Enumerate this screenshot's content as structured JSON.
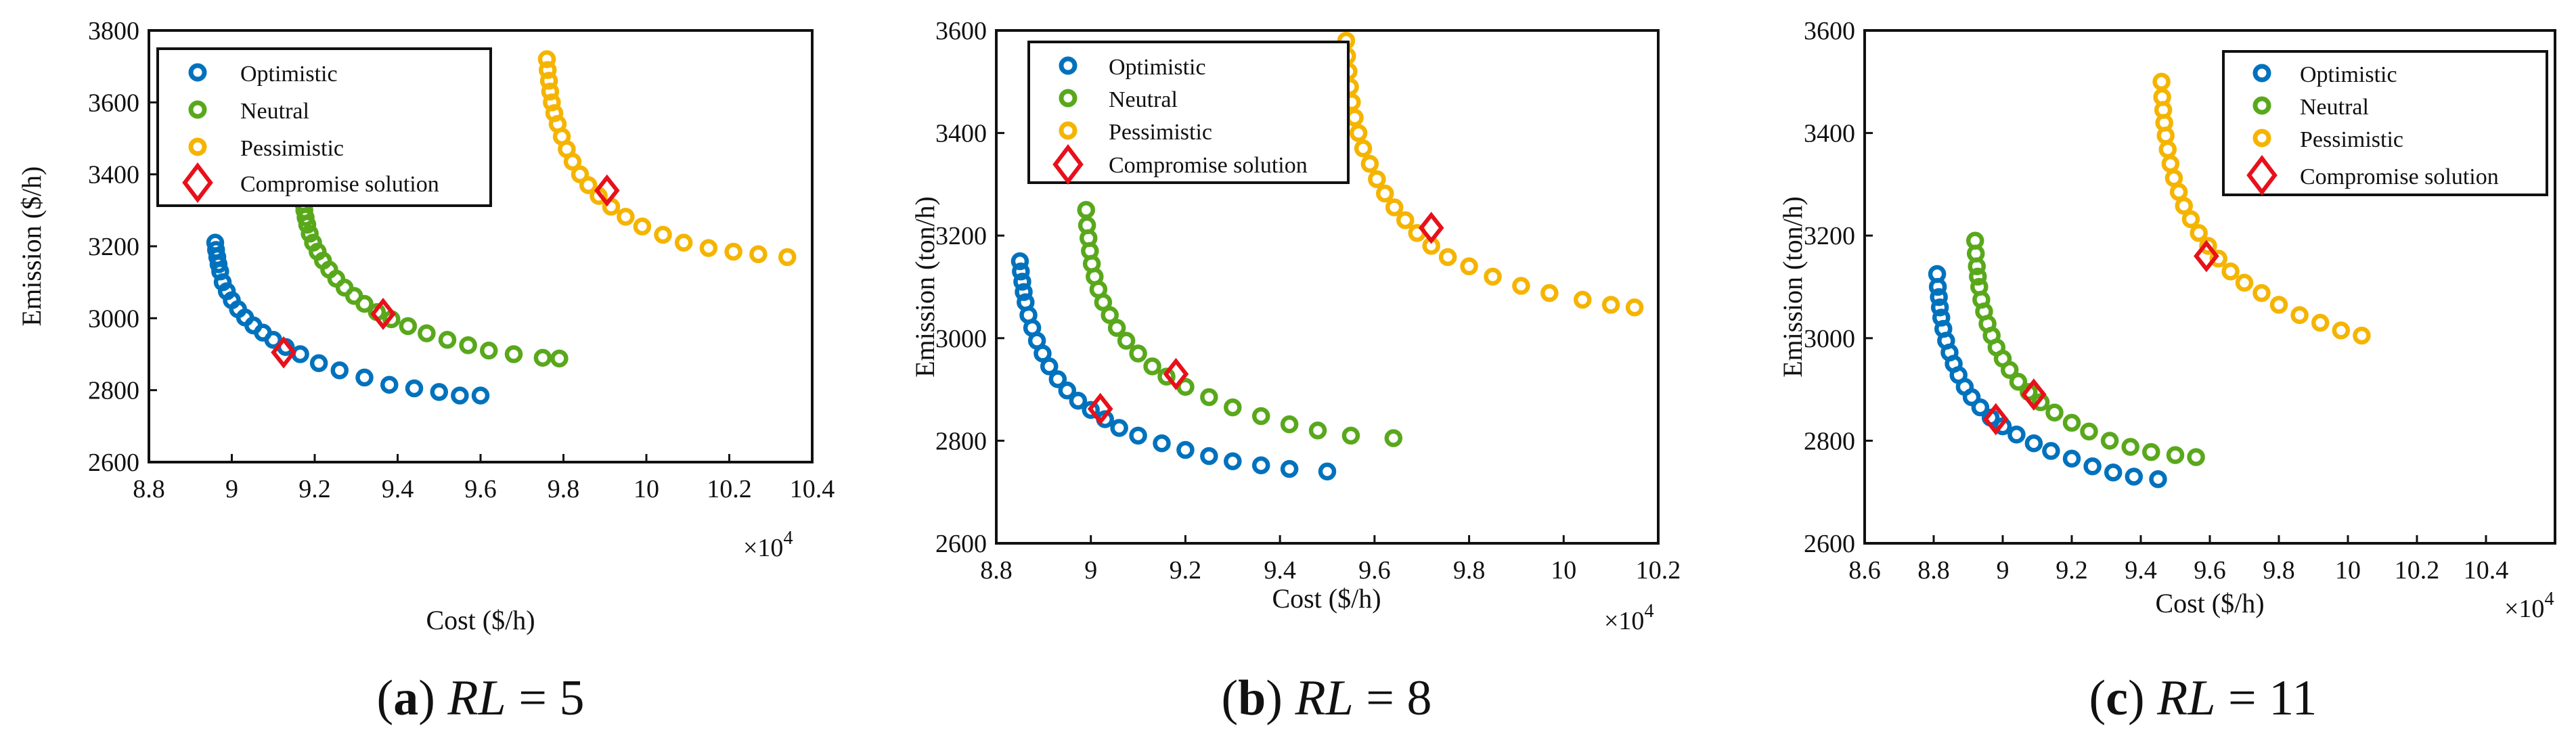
{
  "colors": {
    "optimistic": "#0072BD",
    "neutral": "#59A81C",
    "pessimistic": "#F5B400",
    "compromise": "#E8101A",
    "axis": "#111111"
  },
  "chart_data": [
    {
      "type": "scatter",
      "panel": "a",
      "caption": {
        "letter": "a",
        "open": "(",
        "close": ")",
        "var": "RL",
        "eq": "=",
        "value": "5"
      },
      "xlabel": "Cost ($/h)",
      "ylabel": "Emission ($/h)",
      "multiplier": "×10",
      "multiplier_exp": "4",
      "xlim": [
        8.8,
        10.4
      ],
      "ylim": [
        2600,
        3800
      ],
      "xticks": [
        8.8,
        9,
        9.2,
        9.4,
        9.6,
        9.8,
        10,
        10.2,
        10.4
      ],
      "xtick_labels": [
        "8.8",
        "9",
        "9.2",
        "9.4",
        "9.6",
        "9.8",
        "10",
        "10.2",
        "10.4"
      ],
      "yticks": [
        2600,
        2800,
        3000,
        3200,
        3400,
        3600,
        3800
      ],
      "ytick_labels": [
        "2600",
        "2800",
        "3000",
        "3200",
        "3400",
        "3600",
        "3800"
      ],
      "legend": [
        "Optimistic",
        "Neutral",
        "Pessimistic",
        "Compromise solution"
      ],
      "legend_position": "top-left",
      "series": [
        {
          "name": "Optimistic",
          "color_key": "optimistic",
          "x": [
            8.96,
            8.962,
            8.965,
            8.968,
            8.972,
            8.978,
            8.988,
            9.0,
            9.015,
            9.032,
            9.052,
            9.075,
            9.1,
            9.13,
            9.165,
            9.21,
            9.26,
            9.32,
            9.38,
            9.44,
            9.5,
            9.55,
            9.6
          ],
          "y": [
            3210,
            3190,
            3170,
            3150,
            3130,
            3100,
            3075,
            3050,
            3025,
            3002,
            2980,
            2960,
            2940,
            2920,
            2900,
            2875,
            2855,
            2835,
            2815,
            2805,
            2795,
            2785,
            2785
          ]
        },
        {
          "name": "Neutral",
          "color_key": "neutral",
          "x": [
            9.17,
            9.172,
            9.175,
            9.178,
            9.182,
            9.188,
            9.196,
            9.207,
            9.22,
            9.235,
            9.252,
            9.272,
            9.295,
            9.32,
            9.35,
            9.385,
            9.425,
            9.47,
            9.52,
            9.57,
            9.62,
            9.68,
            9.75,
            9.79
          ],
          "y": [
            3340,
            3320,
            3300,
            3280,
            3260,
            3235,
            3210,
            3185,
            3160,
            3135,
            3110,
            3085,
            3062,
            3040,
            3017,
            2997,
            2978,
            2958,
            2940,
            2925,
            2910,
            2900,
            2890,
            2888
          ]
        },
        {
          "name": "Pessimistic",
          "color_key": "pessimistic",
          "x": [
            9.76,
            9.762,
            9.765,
            9.768,
            9.772,
            9.778,
            9.786,
            9.796,
            9.808,
            9.822,
            9.84,
            9.86,
            9.885,
            9.915,
            9.95,
            9.99,
            10.04,
            10.09,
            10.15,
            10.21,
            10.27,
            10.34
          ],
          "y": [
            3720,
            3690,
            3660,
            3630,
            3600,
            3570,
            3540,
            3505,
            3470,
            3435,
            3400,
            3370,
            3340,
            3310,
            3282,
            3255,
            3232,
            3210,
            3195,
            3185,
            3178,
            3170
          ]
        },
        {
          "name": "Compromise solution",
          "color_key": "compromise",
          "marker": "diamond",
          "x": [
            9.125,
            9.365,
            9.905
          ],
          "y": [
            2905,
            3012,
            3355
          ]
        }
      ]
    },
    {
      "type": "scatter",
      "panel": "b",
      "caption": {
        "letter": "b",
        "open": "(",
        "close": ")",
        "var": "RL",
        "eq": "=",
        "value": "8"
      },
      "xlabel": "Cost ($/h)",
      "ylabel": "Emission (ton/h)",
      "multiplier": "×10",
      "multiplier_exp": "4",
      "xlim": [
        8.8,
        10.2
      ],
      "ylim": [
        2600,
        3600
      ],
      "xticks": [
        8.8,
        9,
        9.2,
        9.4,
        9.6,
        9.8,
        10,
        10.2
      ],
      "xtick_labels": [
        "8.8",
        "9",
        "9.2",
        "9.4",
        "9.6",
        "9.8",
        "10",
        "10.2"
      ],
      "yticks": [
        2600,
        2800,
        3000,
        3200,
        3400,
        3600
      ],
      "ytick_labels": [
        "2600",
        "2800",
        "3000",
        "3200",
        "3400",
        "3600"
      ],
      "legend": [
        "Optimistic",
        "Neutral",
        "Pessimistic",
        "Compromise solution"
      ],
      "legend_position": "top-left",
      "series": [
        {
          "name": "Optimistic",
          "color_key": "optimistic",
          "x": [
            8.85,
            8.852,
            8.855,
            8.858,
            8.862,
            8.868,
            8.876,
            8.886,
            8.898,
            8.912,
            8.93,
            8.95,
            8.973,
            9.0,
            9.03,
            9.06,
            9.1,
            9.15,
            9.2,
            9.25,
            9.3,
            9.36,
            9.42,
            9.5
          ],
          "y": [
            3150,
            3130,
            3110,
            3090,
            3070,
            3045,
            3020,
            2995,
            2970,
            2945,
            2920,
            2898,
            2878,
            2860,
            2842,
            2825,
            2810,
            2795,
            2782,
            2770,
            2760,
            2752,
            2745,
            2740
          ]
        },
        {
          "name": "Neutral",
          "color_key": "neutral",
          "x": [
            8.99,
            8.992,
            8.995,
            8.998,
            9.002,
            9.008,
            9.016,
            9.026,
            9.04,
            9.055,
            9.075,
            9.1,
            9.13,
            9.16,
            9.2,
            9.25,
            9.3,
            9.36,
            9.42,
            9.48,
            9.55,
            9.64
          ],
          "y": [
            3250,
            3220,
            3195,
            3170,
            3145,
            3120,
            3095,
            3070,
            3045,
            3020,
            2995,
            2970,
            2945,
            2925,
            2905,
            2885,
            2865,
            2848,
            2832,
            2820,
            2810,
            2805
          ]
        },
        {
          "name": "Pessimistic",
          "color_key": "pessimistic",
          "x": [
            9.54,
            9.542,
            9.545,
            9.548,
            9.552,
            9.558,
            9.566,
            9.576,
            9.59,
            9.605,
            9.622,
            9.642,
            9.665,
            9.69,
            9.72,
            9.755,
            9.8,
            9.85,
            9.91,
            9.97,
            10.04,
            10.1,
            10.15
          ],
          "y": [
            3580,
            3550,
            3520,
            3490,
            3460,
            3430,
            3400,
            3370,
            3340,
            3310,
            3282,
            3255,
            3230,
            3205,
            3180,
            3158,
            3140,
            3120,
            3102,
            3088,
            3075,
            3065,
            3060
          ]
        },
        {
          "name": "Compromise solution",
          "color_key": "compromise",
          "marker": "diamond",
          "x": [
            9.02,
            9.18,
            9.72
          ],
          "y": [
            2862,
            2930,
            3215
          ]
        }
      ]
    },
    {
      "type": "scatter",
      "panel": "c",
      "caption": {
        "letter": "c",
        "open": "(",
        "close": ")",
        "var": "RL",
        "eq": "=",
        "value": "11"
      },
      "xlabel": "Cost ($/h)",
      "ylabel": "Emission (ton/h)",
      "multiplier": "×10",
      "multiplier_exp": "4",
      "xlim": [
        8.6,
        10.6
      ],
      "ylim": [
        2600,
        3600
      ],
      "xticks": [
        8.6,
        8.8,
        9,
        9.2,
        9.4,
        9.6,
        9.8,
        10,
        10.2,
        10.4,
        10.6
      ],
      "xtick_labels": [
        "8.6",
        "8.8",
        "9",
        "9.2",
        "9.4",
        "9.6",
        "9.8",
        "10",
        "10.2",
        "10.4",
        ""
      ],
      "yticks": [
        2600,
        2800,
        3000,
        3200,
        3400,
        3600
      ],
      "ytick_labels": [
        "2600",
        "2800",
        "3000",
        "3200",
        "3400",
        "3600"
      ],
      "legend": [
        "Optimistic",
        "Neutral",
        "Pessimistic",
        "Compromise solution"
      ],
      "legend_position": "top-right",
      "series": [
        {
          "name": "Optimistic",
          "color_key": "optimistic",
          "x": [
            8.81,
            8.812,
            8.815,
            8.818,
            8.822,
            8.828,
            8.836,
            8.846,
            8.858,
            8.872,
            8.89,
            8.91,
            8.935,
            8.965,
            9.0,
            9.04,
            9.09,
            9.14,
            9.2,
            9.26,
            9.32,
            9.38,
            9.45
          ],
          "y": [
            3125,
            3100,
            3080,
            3060,
            3040,
            3018,
            2995,
            2972,
            2950,
            2928,
            2905,
            2885,
            2865,
            2845,
            2828,
            2812,
            2795,
            2780,
            2765,
            2750,
            2738,
            2730,
            2725
          ]
        },
        {
          "name": "Neutral",
          "color_key": "neutral",
          "x": [
            8.92,
            8.922,
            8.925,
            8.928,
            8.932,
            8.938,
            8.946,
            8.956,
            8.968,
            8.982,
            9.0,
            9.02,
            9.045,
            9.075,
            9.11,
            9.15,
            9.2,
            9.25,
            9.31,
            9.37,
            9.43,
            9.5,
            9.56
          ],
          "y": [
            3190,
            3165,
            3140,
            3120,
            3100,
            3075,
            3052,
            3028,
            3005,
            2982,
            2960,
            2938,
            2915,
            2895,
            2875,
            2855,
            2835,
            2818,
            2800,
            2788,
            2778,
            2772,
            2768
          ]
        },
        {
          "name": "Pessimistic",
          "color_key": "pessimistic",
          "x": [
            9.46,
            9.462,
            9.465,
            9.468,
            9.472,
            9.478,
            9.486,
            9.496,
            9.51,
            9.525,
            9.545,
            9.568,
            9.595,
            9.625,
            9.66,
            9.7,
            9.75,
            9.8,
            9.86,
            9.92,
            9.98,
            10.04
          ],
          "y": [
            3500,
            3470,
            3445,
            3420,
            3395,
            3368,
            3340,
            3312,
            3285,
            3258,
            3232,
            3205,
            3180,
            3155,
            3130,
            3108,
            3088,
            3065,
            3045,
            3030,
            3015,
            3005
          ]
        },
        {
          "name": "Compromise solution",
          "color_key": "compromise",
          "marker": "diamond",
          "x": [
            8.98,
            9.09,
            9.59
          ],
          "y": [
            2842,
            2890,
            3160
          ]
        }
      ]
    }
  ]
}
